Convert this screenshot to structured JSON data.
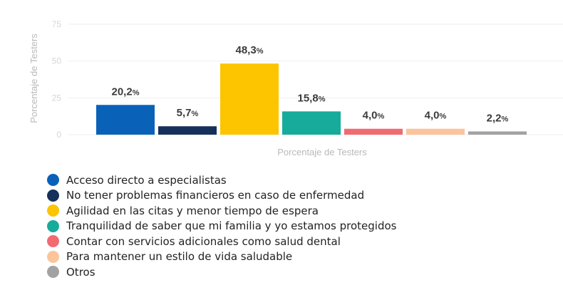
{
  "chart_data": {
    "type": "bar",
    "title": "",
    "ylabel": "Porcentaje de Testers",
    "xlabel": "Porcentaje de Testers",
    "ylim": [
      0,
      75
    ],
    "yticks": [
      "75",
      "50",
      "25",
      "0"
    ],
    "grid": true,
    "legend_position": "bottom",
    "series": [
      {
        "name": "Acceso directo a especialistas",
        "value": 20.2,
        "label": "20,2",
        "color": "#0a62b8"
      },
      {
        "name": "No tener problemas financieros en caso de enfermedad",
        "value": 5.7,
        "label": "5,7",
        "color": "#16305b"
      },
      {
        "name": "Agilidad en las citas y menor tiempo de espera",
        "value": 48.3,
        "label": "48,3",
        "color": "#fcc500"
      },
      {
        "name": "Tranquilidad de saber que mi familia y yo estamos protegidos",
        "value": 15.8,
        "label": "15,8",
        "color": "#16ab9a"
      },
      {
        "name": "Contar con servicios adicionales como salud dental",
        "value": 4.0,
        "label": "4,0",
        "color": "#f06a72"
      },
      {
        "name": "Para mantener un estilo de vida saludable",
        "value": 4.0,
        "label": "4,0",
        "color": "#fcc49a"
      },
      {
        "name": "Otros",
        "value": 2.2,
        "label": "2,2",
        "color": "#a2a2a2"
      }
    ],
    "percent_symbol": "%"
  }
}
